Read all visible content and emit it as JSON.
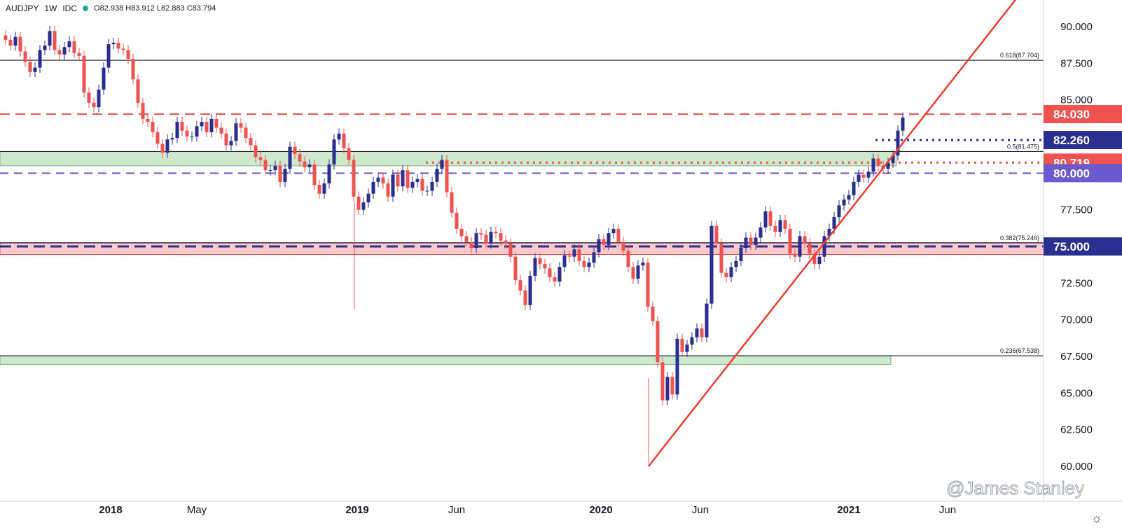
{
  "header": {
    "symbol": "AUDJPY",
    "interval": "1W",
    "source": "IDC",
    "ohlc": "O82.938 H83.912 L82.883 C83.794"
  },
  "watermark": "@James Stanley",
  "colors": {
    "up": "#2a2e8f",
    "down": "#ef5350",
    "trendline": "#f23b2f",
    "axis": "#131722"
  },
  "icons": {
    "settings": "gear-icon"
  },
  "chart_data": {
    "type": "candlestick",
    "ylim": [
      58.5,
      92.0
    ],
    "y_ticks": [
      "60.000",
      "62.500",
      "65.000",
      "67.500",
      "70.000",
      "72.500",
      "75.000",
      "77.500",
      "80.000",
      "82.500",
      "85.000",
      "87.500",
      "90.000"
    ],
    "x_ticks": [
      "2018",
      "May",
      "2019",
      "Jun",
      "2020",
      "Jun",
      "2021",
      "Jun"
    ],
    "price_labels": [
      {
        "text": "84.030",
        "value": 84.03,
        "color": "#ef5350"
      },
      {
        "text": "82.260",
        "value": 82.26,
        "color": "#2a2e8f"
      },
      {
        "text": "80.719",
        "value": 80.719,
        "color": "#ef5350"
      },
      {
        "text": "80.000",
        "value": 80.0,
        "color": "#6a5acd"
      },
      {
        "text": "75.000",
        "value": 75.0,
        "color": "#2a2e8f"
      }
    ],
    "fib_levels": [
      {
        "text": "0.618(87.704)",
        "value": 87.704
      },
      {
        "text": "0.5(81.475)",
        "value": 81.475
      },
      {
        "text": "0.382(75.246)",
        "value": 75.246
      },
      {
        "text": "0.236(67.538)",
        "value": 67.538
      }
    ],
    "zones": [
      {
        "from": 80.5,
        "to": 81.47,
        "color": "green"
      },
      {
        "from": 74.45,
        "to": 75.25,
        "color": "red"
      },
      {
        "from": 66.95,
        "to": 67.54,
        "color": "green"
      }
    ],
    "trendline": {
      "from_week": 134,
      "from_value": 60.0,
      "to_week": 190,
      "to_value": 92.2
    },
    "first_week_label": "2017-09 (approx)",
    "candles_close": [
      89.1,
      88.7,
      89.3,
      88.3,
      87.6,
      86.9,
      87.2,
      88.4,
      88.7,
      89.7,
      88.4,
      88.1,
      88.6,
      89.0,
      88.2,
      88.0,
      85.5,
      84.8,
      84.5,
      85.7,
      87.2,
      88.8,
      88.9,
      88.5,
      88.4,
      87.8,
      86.4,
      84.8,
      83.7,
      83.5,
      82.8,
      82.0,
      81.4,
      82.3,
      82.4,
      83.5,
      82.9,
      82.5,
      82.5,
      83.2,
      83.5,
      82.8,
      83.7,
      83.1,
      82.7,
      81.9,
      82.2,
      83.4,
      83.1,
      82.4,
      81.9,
      81.1,
      80.9,
      80.2,
      80.2,
      80.5,
      79.4,
      80.3,
      81.8,
      81.3,
      80.8,
      80.4,
      80.6,
      79.2,
      78.6,
      79.3,
      80.6,
      82.3,
      82.7,
      81.7,
      80.9,
      78.4,
      77.5,
      78.0,
      78.6,
      79.4,
      79.7,
      79.3,
      78.4,
      79.9,
      79.1,
      80.2,
      79.0,
      79.4,
      79.6,
      78.8,
      78.8,
      79.4,
      80.3,
      80.9,
      78.7,
      77.3,
      76.2,
      75.7,
      75.3,
      74.9,
      75.9,
      75.8,
      75.2,
      76.0,
      75.9,
      75.4,
      75.2,
      74.3,
      72.7,
      72.0,
      71.0,
      73.0,
      74.2,
      73.8,
      73.5,
      72.9,
      72.6,
      73.6,
      74.4,
      74.3,
      74.8,
      74.0,
      73.6,
      73.9,
      74.6,
      75.5,
      75.1,
      75.9,
      76.2,
      75.3,
      74.7,
      73.6,
      72.8,
      73.7,
      73.9,
      70.9,
      69.9,
      67.1,
      64.5,
      66.1,
      64.9,
      68.7,
      67.8,
      68.3,
      68.8,
      69.4,
      68.8,
      71.1,
      76.4,
      75.2,
      73.2,
      72.9,
      73.6,
      74.0,
      74.9,
      75.6,
      75.1,
      75.6,
      76.3,
      77.4,
      76.4,
      76.0,
      76.8,
      76.2,
      74.5,
      74.3,
      75.7,
      75.2,
      74.5,
      73.8,
      74.3,
      75.7,
      76.2,
      77.0,
      77.8,
      78.2,
      78.5,
      79.4,
      79.9,
      79.7,
      80.1,
      81.0,
      80.5,
      80.3,
      80.7,
      81.2,
      82.9,
      83.8
    ]
  }
}
